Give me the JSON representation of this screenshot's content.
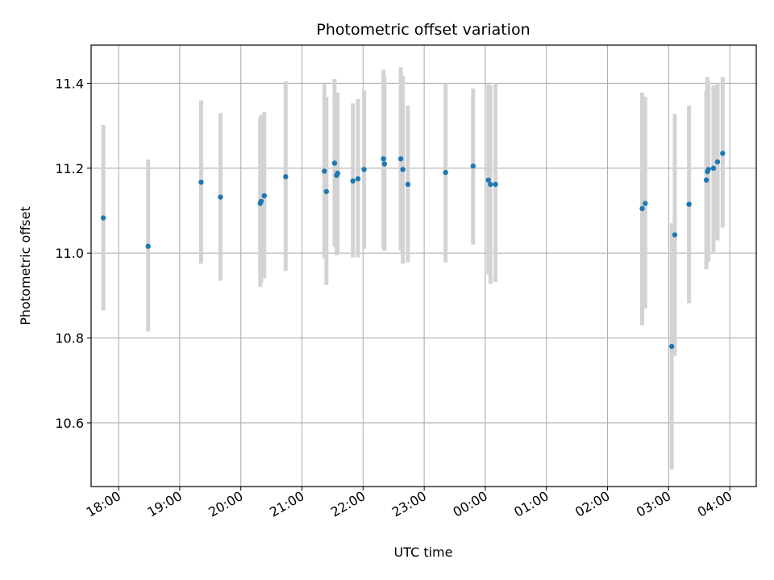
{
  "chart_data": {
    "type": "scatter",
    "title": "Photometric offset variation",
    "xlabel": "UTC time",
    "ylabel": "Photometric offset",
    "grid": true,
    "xlim": [
      "17:33",
      "04:26"
    ],
    "ylim": [
      10.45,
      11.49
    ],
    "x_ticks": [
      "18:00",
      "19:00",
      "20:00",
      "21:00",
      "22:00",
      "23:00",
      "00:00",
      "01:00",
      "02:00",
      "03:00",
      "04:00"
    ],
    "y_ticks": [
      "10.6",
      "10.8",
      "11.0",
      "11.2",
      "11.4"
    ],
    "colors": {
      "point": "#1f77b4",
      "errorbar": "#d3d3d3",
      "grid": "#b0b0b0",
      "axes": "#000000"
    },
    "points": [
      {
        "x": "17:45",
        "y": 11.083,
        "ylow": 10.865,
        "yhigh": 11.302
      },
      {
        "x": "18:29",
        "y": 11.016,
        "ylow": 10.815,
        "yhigh": 11.22
      },
      {
        "x": "19:21",
        "y": 11.167,
        "ylow": 10.975,
        "yhigh": 11.36
      },
      {
        "x": "19:40",
        "y": 11.132,
        "ylow": 10.935,
        "yhigh": 11.33
      },
      {
        "x": "20:19",
        "y": 11.117,
        "ylow": 10.92,
        "yhigh": 11.32
      },
      {
        "x": "20:20",
        "y": 11.122,
        "ylow": 10.93,
        "yhigh": 11.325
      },
      {
        "x": "20:23",
        "y": 11.135,
        "ylow": 10.94,
        "yhigh": 11.332
      },
      {
        "x": "20:44",
        "y": 11.18,
        "ylow": 10.958,
        "yhigh": 11.405
      },
      {
        "x": "21:22",
        "y": 11.193,
        "ylow": 10.988,
        "yhigh": 11.398
      },
      {
        "x": "21:24",
        "y": 11.145,
        "ylow": 10.925,
        "yhigh": 11.368
      },
      {
        "x": "21:32",
        "y": 11.212,
        "ylow": 11.015,
        "yhigh": 11.41
      },
      {
        "x": "21:34",
        "y": 11.183,
        "ylow": 10.995,
        "yhigh": 11.375
      },
      {
        "x": "21:35",
        "y": 11.188,
        "ylow": 11.0,
        "yhigh": 11.378
      },
      {
        "x": "21:50",
        "y": 11.17,
        "ylow": 10.99,
        "yhigh": 11.353
      },
      {
        "x": "21:55",
        "y": 11.175,
        "ylow": 10.99,
        "yhigh": 11.363
      },
      {
        "x": "22:01",
        "y": 11.197,
        "ylow": 11.01,
        "yhigh": 11.383
      },
      {
        "x": "22:20",
        "y": 11.222,
        "ylow": 11.01,
        "yhigh": 11.432
      },
      {
        "x": "22:21",
        "y": 11.21,
        "ylow": 11.005,
        "yhigh": 11.418
      },
      {
        "x": "22:37",
        "y": 11.222,
        "ylow": 11.005,
        "yhigh": 11.438
      },
      {
        "x": "22:39",
        "y": 11.197,
        "ylow": 10.975,
        "yhigh": 11.418
      },
      {
        "x": "22:44",
        "y": 11.162,
        "ylow": 10.978,
        "yhigh": 11.348
      },
      {
        "x": "23:21",
        "y": 11.19,
        "ylow": 10.978,
        "yhigh": 11.4
      },
      {
        "x": "23:48",
        "y": 11.205,
        "ylow": 11.02,
        "yhigh": 11.388
      },
      {
        "x": "00:03",
        "y": 11.172,
        "ylow": 10.95,
        "yhigh": 11.398
      },
      {
        "x": "00:05",
        "y": 11.162,
        "ylow": 10.928,
        "yhigh": 11.395
      },
      {
        "x": "00:10",
        "y": 11.162,
        "ylow": 10.932,
        "yhigh": 11.4
      },
      {
        "x": "02:34",
        "y": 11.105,
        "ylow": 10.83,
        "yhigh": 11.378
      },
      {
        "x": "02:37",
        "y": 11.117,
        "ylow": 10.87,
        "yhigh": 11.368
      },
      {
        "x": "03:03",
        "y": 10.78,
        "ylow": 10.49,
        "yhigh": 11.07
      },
      {
        "x": "03:06",
        "y": 11.043,
        "ylow": 10.758,
        "yhigh": 11.328
      },
      {
        "x": "03:20",
        "y": 11.115,
        "ylow": 10.882,
        "yhigh": 11.348
      },
      {
        "x": "03:37",
        "y": 11.172,
        "ylow": 10.962,
        "yhigh": 11.382
      },
      {
        "x": "03:38",
        "y": 11.192,
        "ylow": 10.978,
        "yhigh": 11.415
      },
      {
        "x": "03:39",
        "y": 11.197,
        "ylow": 10.982,
        "yhigh": 11.405
      },
      {
        "x": "03:44",
        "y": 11.2,
        "ylow": 11.002,
        "yhigh": 11.395
      },
      {
        "x": "03:48",
        "y": 11.215,
        "ylow": 11.03,
        "yhigh": 11.4
      },
      {
        "x": "03:53",
        "y": 11.235,
        "ylow": 11.06,
        "yhigh": 11.415
      }
    ]
  }
}
